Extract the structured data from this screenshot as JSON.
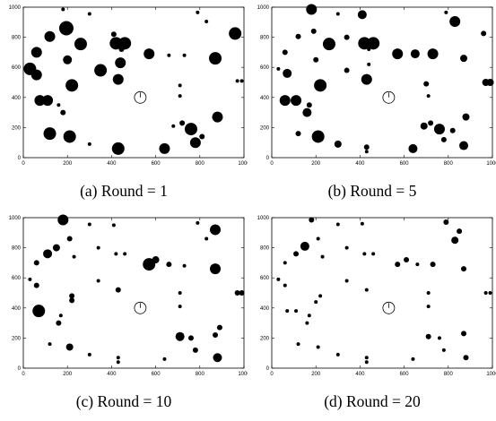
{
  "chart_data": [
    {
      "type": "scatter",
      "caption": "(a) Round = 1",
      "xlim": [
        0,
        1000
      ],
      "ylim": [
        0,
        1000
      ],
      "xticks": [
        0,
        200,
        400,
        600,
        800,
        1000
      ],
      "yticks": [
        0,
        200,
        400,
        600,
        800,
        1000
      ],
      "grid": false,
      "center_marker": {
        "x": 530,
        "y": 400,
        "symbol": "clock-circle"
      },
      "points": [
        {
          "x": 180,
          "y": 985,
          "size": 2
        },
        {
          "x": 300,
          "y": 955,
          "size": 2
        },
        {
          "x": 790,
          "y": 965,
          "size": 2
        },
        {
          "x": 830,
          "y": 905,
          "size": 2
        },
        {
          "x": 120,
          "y": 805,
          "size": 6
        },
        {
          "x": 195,
          "y": 860,
          "size": 8
        },
        {
          "x": 260,
          "y": 755,
          "size": 7
        },
        {
          "x": 410,
          "y": 820,
          "size": 3
        },
        {
          "x": 420,
          "y": 760,
          "size": 7
        },
        {
          "x": 460,
          "y": 760,
          "size": 7
        },
        {
          "x": 445,
          "y": 720,
          "size": 3
        },
        {
          "x": 570,
          "y": 690,
          "size": 6
        },
        {
          "x": 660,
          "y": 680,
          "size": 2
        },
        {
          "x": 730,
          "y": 680,
          "size": 2
        },
        {
          "x": 870,
          "y": 660,
          "size": 7
        },
        {
          "x": 960,
          "y": 825,
          "size": 7
        },
        {
          "x": 30,
          "y": 590,
          "size": 7
        },
        {
          "x": 60,
          "y": 700,
          "size": 6
        },
        {
          "x": 60,
          "y": 550,
          "size": 6
        },
        {
          "x": 75,
          "y": 380,
          "size": 6
        },
        {
          "x": 110,
          "y": 380,
          "size": 6
        },
        {
          "x": 200,
          "y": 650,
          "size": 5
        },
        {
          "x": 350,
          "y": 580,
          "size": 7
        },
        {
          "x": 430,
          "y": 520,
          "size": 6
        },
        {
          "x": 440,
          "y": 630,
          "size": 6
        },
        {
          "x": 220,
          "y": 480,
          "size": 7
        },
        {
          "x": 160,
          "y": 350,
          "size": 2
        },
        {
          "x": 180,
          "y": 300,
          "size": 3
        },
        {
          "x": 710,
          "y": 480,
          "size": 2
        },
        {
          "x": 710,
          "y": 410,
          "size": 2
        },
        {
          "x": 970,
          "y": 510,
          "size": 2
        },
        {
          "x": 990,
          "y": 510,
          "size": 2
        },
        {
          "x": 120,
          "y": 160,
          "size": 7
        },
        {
          "x": 210,
          "y": 140,
          "size": 7
        },
        {
          "x": 300,
          "y": 90,
          "size": 2
        },
        {
          "x": 430,
          "y": 60,
          "size": 7
        },
        {
          "x": 640,
          "y": 60,
          "size": 6
        },
        {
          "x": 680,
          "y": 210,
          "size": 2
        },
        {
          "x": 720,
          "y": 230,
          "size": 3
        },
        {
          "x": 760,
          "y": 190,
          "size": 7
        },
        {
          "x": 780,
          "y": 100,
          "size": 6
        },
        {
          "x": 880,
          "y": 270,
          "size": 6
        },
        {
          "x": 810,
          "y": 140,
          "size": 3
        }
      ]
    },
    {
      "type": "scatter",
      "caption": "(b) Round = 5",
      "xlim": [
        0,
        1000
      ],
      "ylim": [
        0,
        1000
      ],
      "xticks": [
        0,
        200,
        400,
        600,
        800,
        1000
      ],
      "yticks": [
        0,
        200,
        400,
        600,
        800,
        1000
      ],
      "grid": false,
      "center_marker": {
        "x": 530,
        "y": 400,
        "symbol": "clock-circle"
      },
      "points": [
        {
          "x": 180,
          "y": 985,
          "size": 6
        },
        {
          "x": 300,
          "y": 955,
          "size": 2
        },
        {
          "x": 410,
          "y": 950,
          "size": 5
        },
        {
          "x": 790,
          "y": 965,
          "size": 2
        },
        {
          "x": 830,
          "y": 905,
          "size": 6
        },
        {
          "x": 960,
          "y": 825,
          "size": 3
        },
        {
          "x": 120,
          "y": 805,
          "size": 3
        },
        {
          "x": 190,
          "y": 840,
          "size": 3
        },
        {
          "x": 260,
          "y": 755,
          "size": 7
        },
        {
          "x": 340,
          "y": 800,
          "size": 3
        },
        {
          "x": 420,
          "y": 760,
          "size": 7
        },
        {
          "x": 460,
          "y": 760,
          "size": 7
        },
        {
          "x": 440,
          "y": 720,
          "size": 2
        },
        {
          "x": 570,
          "y": 690,
          "size": 6
        },
        {
          "x": 650,
          "y": 690,
          "size": 5
        },
        {
          "x": 730,
          "y": 690,
          "size": 6
        },
        {
          "x": 870,
          "y": 660,
          "size": 4
        },
        {
          "x": 60,
          "y": 700,
          "size": 3
        },
        {
          "x": 30,
          "y": 590,
          "size": 2
        },
        {
          "x": 70,
          "y": 560,
          "size": 5
        },
        {
          "x": 60,
          "y": 380,
          "size": 6
        },
        {
          "x": 110,
          "y": 380,
          "size": 6
        },
        {
          "x": 200,
          "y": 650,
          "size": 3
        },
        {
          "x": 340,
          "y": 580,
          "size": 3
        },
        {
          "x": 430,
          "y": 520,
          "size": 6
        },
        {
          "x": 440,
          "y": 620,
          "size": 2
        },
        {
          "x": 220,
          "y": 480,
          "size": 7
        },
        {
          "x": 170,
          "y": 350,
          "size": 3
        },
        {
          "x": 160,
          "y": 300,
          "size": 5
        },
        {
          "x": 700,
          "y": 490,
          "size": 3
        },
        {
          "x": 710,
          "y": 410,
          "size": 2
        },
        {
          "x": 970,
          "y": 500,
          "size": 4
        },
        {
          "x": 990,
          "y": 500,
          "size": 4
        },
        {
          "x": 120,
          "y": 160,
          "size": 3
        },
        {
          "x": 210,
          "y": 140,
          "size": 7
        },
        {
          "x": 300,
          "y": 90,
          "size": 4
        },
        {
          "x": 430,
          "y": 70,
          "size": 3
        },
        {
          "x": 430,
          "y": 40,
          "size": 2
        },
        {
          "x": 640,
          "y": 60,
          "size": 5
        },
        {
          "x": 690,
          "y": 210,
          "size": 4
        },
        {
          "x": 720,
          "y": 230,
          "size": 3
        },
        {
          "x": 760,
          "y": 190,
          "size": 6
        },
        {
          "x": 780,
          "y": 120,
          "size": 3
        },
        {
          "x": 880,
          "y": 270,
          "size": 4
        },
        {
          "x": 820,
          "y": 180,
          "size": 3
        },
        {
          "x": 870,
          "y": 80,
          "size": 5
        }
      ]
    },
    {
      "type": "scatter",
      "caption": "(c) Round = 10",
      "xlim": [
        0,
        1000
      ],
      "ylim": [
        0,
        1000
      ],
      "xticks": [
        0,
        200,
        400,
        600,
        800,
        1000
      ],
      "yticks": [
        0,
        200,
        400,
        600,
        800,
        1000
      ],
      "grid": false,
      "center_marker": {
        "x": 530,
        "y": 400,
        "symbol": "clock-circle"
      },
      "points": [
        {
          "x": 180,
          "y": 985,
          "size": 6
        },
        {
          "x": 300,
          "y": 955,
          "size": 2
        },
        {
          "x": 410,
          "y": 950,
          "size": 2
        },
        {
          "x": 790,
          "y": 965,
          "size": 2
        },
        {
          "x": 870,
          "y": 920,
          "size": 6
        },
        {
          "x": 830,
          "y": 860,
          "size": 2
        },
        {
          "x": 210,
          "y": 860,
          "size": 3
        },
        {
          "x": 150,
          "y": 800,
          "size": 4
        },
        {
          "x": 110,
          "y": 760,
          "size": 5
        },
        {
          "x": 230,
          "y": 740,
          "size": 2
        },
        {
          "x": 340,
          "y": 800,
          "size": 2
        },
        {
          "x": 420,
          "y": 760,
          "size": 2
        },
        {
          "x": 460,
          "y": 760,
          "size": 2
        },
        {
          "x": 570,
          "y": 690,
          "size": 7
        },
        {
          "x": 600,
          "y": 720,
          "size": 4
        },
        {
          "x": 660,
          "y": 690,
          "size": 3
        },
        {
          "x": 730,
          "y": 680,
          "size": 2
        },
        {
          "x": 870,
          "y": 660,
          "size": 6
        },
        {
          "x": 60,
          "y": 700,
          "size": 3
        },
        {
          "x": 30,
          "y": 590,
          "size": 2
        },
        {
          "x": 60,
          "y": 550,
          "size": 3
        },
        {
          "x": 70,
          "y": 380,
          "size": 7
        },
        {
          "x": 220,
          "y": 480,
          "size": 3
        },
        {
          "x": 220,
          "y": 450,
          "size": 3
        },
        {
          "x": 340,
          "y": 580,
          "size": 2
        },
        {
          "x": 430,
          "y": 520,
          "size": 3
        },
        {
          "x": 170,
          "y": 350,
          "size": 2
        },
        {
          "x": 160,
          "y": 300,
          "size": 3
        },
        {
          "x": 710,
          "y": 500,
          "size": 2
        },
        {
          "x": 710,
          "y": 410,
          "size": 2
        },
        {
          "x": 970,
          "y": 500,
          "size": 3
        },
        {
          "x": 990,
          "y": 500,
          "size": 3
        },
        {
          "x": 120,
          "y": 160,
          "size": 2
        },
        {
          "x": 210,
          "y": 140,
          "size": 4
        },
        {
          "x": 300,
          "y": 90,
          "size": 2
        },
        {
          "x": 430,
          "y": 70,
          "size": 2
        },
        {
          "x": 430,
          "y": 40,
          "size": 2
        },
        {
          "x": 640,
          "y": 60,
          "size": 2
        },
        {
          "x": 710,
          "y": 210,
          "size": 5
        },
        {
          "x": 760,
          "y": 200,
          "size": 3
        },
        {
          "x": 780,
          "y": 120,
          "size": 3
        },
        {
          "x": 870,
          "y": 220,
          "size": 3
        },
        {
          "x": 890,
          "y": 270,
          "size": 3
        },
        {
          "x": 880,
          "y": 70,
          "size": 5
        }
      ]
    },
    {
      "type": "scatter",
      "caption": "(d) Round = 20",
      "xlim": [
        0,
        1000
      ],
      "ylim": [
        0,
        1000
      ],
      "xticks": [
        0,
        200,
        400,
        600,
        800,
        1000
      ],
      "yticks": [
        0,
        200,
        400,
        600,
        800,
        1000
      ],
      "grid": false,
      "center_marker": {
        "x": 530,
        "y": 400,
        "symbol": "clock-circle"
      },
      "points": [
        {
          "x": 180,
          "y": 985,
          "size": 3
        },
        {
          "x": 300,
          "y": 955,
          "size": 2
        },
        {
          "x": 410,
          "y": 960,
          "size": 2
        },
        {
          "x": 790,
          "y": 970,
          "size": 3
        },
        {
          "x": 850,
          "y": 910,
          "size": 3
        },
        {
          "x": 830,
          "y": 850,
          "size": 4
        },
        {
          "x": 210,
          "y": 860,
          "size": 2
        },
        {
          "x": 150,
          "y": 810,
          "size": 5
        },
        {
          "x": 110,
          "y": 760,
          "size": 3
        },
        {
          "x": 230,
          "y": 740,
          "size": 2
        },
        {
          "x": 340,
          "y": 800,
          "size": 2
        },
        {
          "x": 420,
          "y": 760,
          "size": 2
        },
        {
          "x": 460,
          "y": 760,
          "size": 2
        },
        {
          "x": 570,
          "y": 690,
          "size": 3
        },
        {
          "x": 610,
          "y": 720,
          "size": 3
        },
        {
          "x": 660,
          "y": 690,
          "size": 2
        },
        {
          "x": 730,
          "y": 690,
          "size": 3
        },
        {
          "x": 870,
          "y": 660,
          "size": 3
        },
        {
          "x": 60,
          "y": 700,
          "size": 2
        },
        {
          "x": 30,
          "y": 590,
          "size": 2
        },
        {
          "x": 60,
          "y": 550,
          "size": 2
        },
        {
          "x": 70,
          "y": 380,
          "size": 2
        },
        {
          "x": 110,
          "y": 380,
          "size": 2
        },
        {
          "x": 220,
          "y": 480,
          "size": 2
        },
        {
          "x": 200,
          "y": 440,
          "size": 2
        },
        {
          "x": 340,
          "y": 580,
          "size": 2
        },
        {
          "x": 430,
          "y": 520,
          "size": 2
        },
        {
          "x": 170,
          "y": 350,
          "size": 2
        },
        {
          "x": 160,
          "y": 300,
          "size": 2
        },
        {
          "x": 710,
          "y": 500,
          "size": 2
        },
        {
          "x": 710,
          "y": 410,
          "size": 2
        },
        {
          "x": 970,
          "y": 500,
          "size": 2
        },
        {
          "x": 990,
          "y": 500,
          "size": 2
        },
        {
          "x": 120,
          "y": 160,
          "size": 2
        },
        {
          "x": 210,
          "y": 140,
          "size": 2
        },
        {
          "x": 300,
          "y": 90,
          "size": 2
        },
        {
          "x": 430,
          "y": 70,
          "size": 2
        },
        {
          "x": 430,
          "y": 40,
          "size": 2
        },
        {
          "x": 640,
          "y": 60,
          "size": 2
        },
        {
          "x": 710,
          "y": 210,
          "size": 3
        },
        {
          "x": 760,
          "y": 200,
          "size": 2
        },
        {
          "x": 780,
          "y": 120,
          "size": 2
        },
        {
          "x": 870,
          "y": 230,
          "size": 3
        },
        {
          "x": 880,
          "y": 70,
          "size": 3
        }
      ]
    }
  ]
}
